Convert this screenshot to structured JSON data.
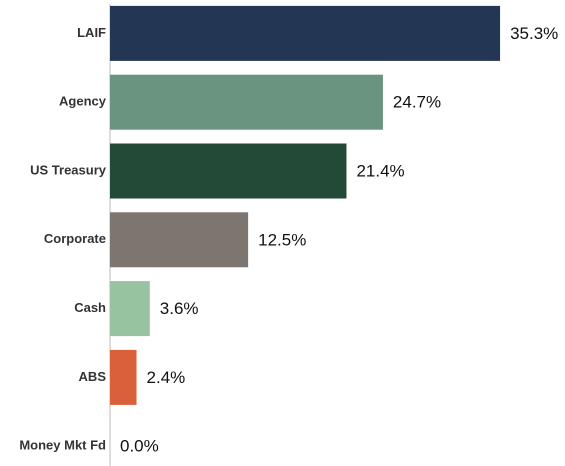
{
  "chart_data": {
    "type": "hbar",
    "categories": [
      "LAIF",
      "Agency",
      "US Treasury",
      "Corporate",
      "Cash",
      "ABS",
      "Money Mkt Fd"
    ],
    "values": [
      35.3,
      24.7,
      21.4,
      12.5,
      3.6,
      2.4,
      0.0
    ],
    "value_labels": [
      "35.3%",
      "24.7%",
      "21.4%",
      "12.5%",
      "3.6%",
      "2.4%",
      "0.0%"
    ],
    "colors": [
      "#233654",
      "#6a9480",
      "#234a36",
      "#7d7570",
      "#97c3a0",
      "#d9603b",
      "#d9603b"
    ]
  }
}
